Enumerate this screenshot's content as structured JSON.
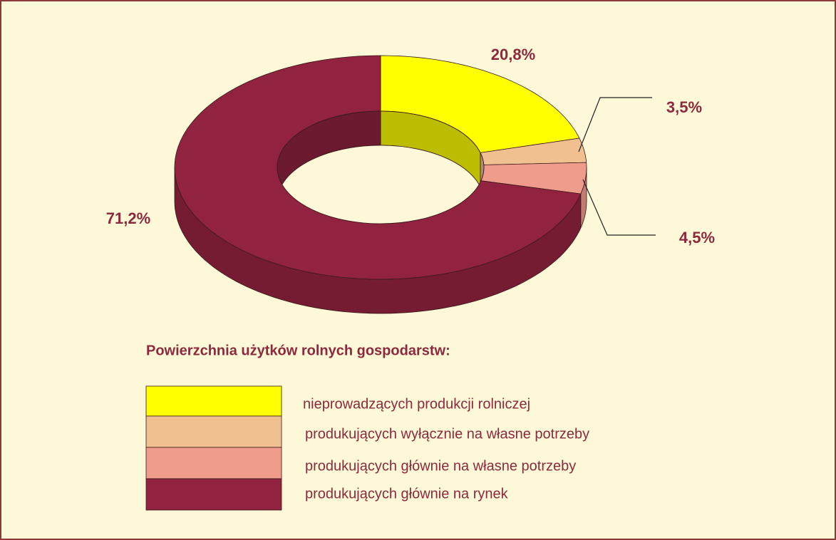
{
  "chart_data": {
    "type": "pie",
    "donut": true,
    "legend_title": "Powierzchnia użytków rolnych gospodarstw:",
    "categories": [
      "nieprowadzących produkcji rolniczej",
      "produkujących wyłącznie na własne potrzeby",
      "produkujących głównie na własne potrzeby",
      "produkujących głównie na rynek"
    ],
    "values": [
      20.8,
      3.5,
      4.5,
      71.2
    ],
    "value_labels": [
      "20,8%",
      "3,5%",
      "4,5%",
      "71,2%"
    ],
    "colors": [
      "#ffff00",
      "#f0c090",
      "#f09c8c",
      "#922340"
    ]
  }
}
